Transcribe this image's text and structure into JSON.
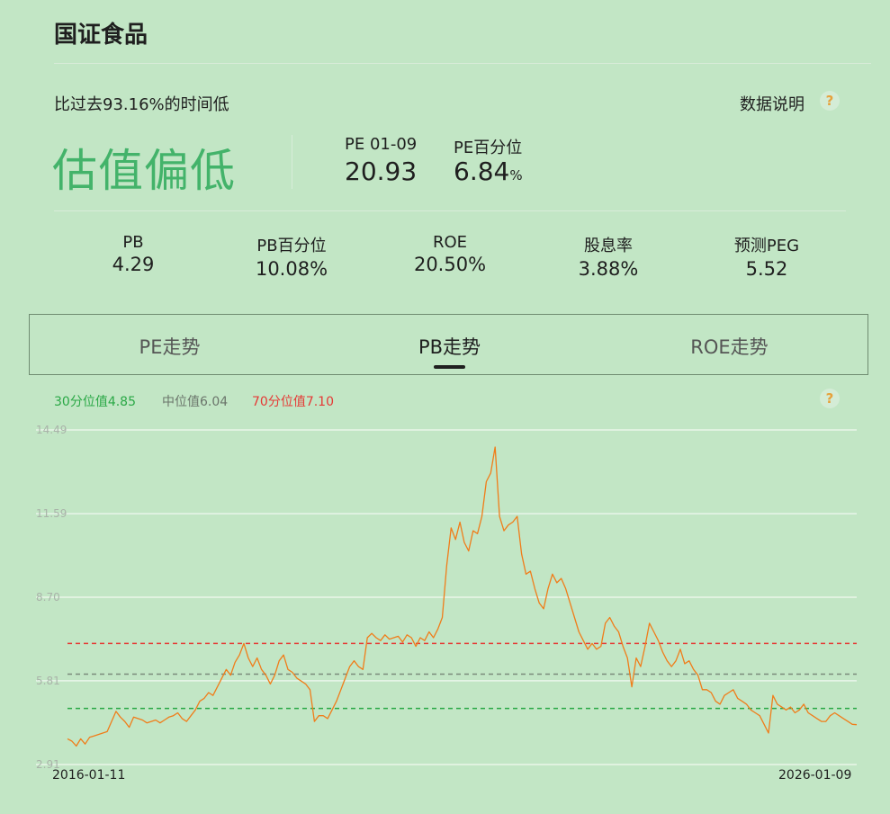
{
  "header": {
    "title": "国证食品"
  },
  "summary": {
    "subtitle": "比过去93.16%的时间低",
    "explain_label": "数据说明",
    "help_icon": "?",
    "status": "估值偏低",
    "pe_label": "PE 01-09",
    "pe_value": "20.93",
    "pe_pct_label": "PE百分位",
    "pe_pct_value": "6.84",
    "pe_pct_unit": "%"
  },
  "metrics": [
    {
      "label": "PB",
      "value": "4.29"
    },
    {
      "label": "PB百分位",
      "value": "10.08%"
    },
    {
      "label": "ROE",
      "value": "20.50%"
    },
    {
      "label": "股息率",
      "value": "3.88%"
    },
    {
      "label": "预测PEG",
      "value": "5.52"
    }
  ],
  "tabs": [
    {
      "label": "PE走势",
      "active": false
    },
    {
      "label": "PB走势",
      "active": true
    },
    {
      "label": "ROE走势",
      "active": false
    }
  ],
  "legend": {
    "p30": "30分位值4.85",
    "median": "中位值6.04",
    "p70": "70分位值7.10",
    "help_icon": "?"
  },
  "colors": {
    "line": "#f07d1a",
    "p30": "#2aa846",
    "median": "#7a8a7a",
    "p70": "#e53935",
    "status": "#43b36a"
  },
  "chart_data": {
    "type": "line",
    "title": "",
    "xlabel": "",
    "ylabel": "",
    "ylim": [
      2.91,
      14.49
    ],
    "y_ticks": [
      "14.49",
      "11.59",
      "8.70",
      "5.81",
      "2.91"
    ],
    "x_start_label": "2016-01-11",
    "x_end_label": "2026-01-09",
    "reference_lines": [
      {
        "name": "30分位值",
        "value": 4.85
      },
      {
        "name": "中位值",
        "value": 6.04
      },
      {
        "name": "70分位值",
        "value": 7.1
      }
    ],
    "series": [
      {
        "values": [
          3.8,
          3.72,
          3.55,
          3.8,
          3.62,
          3.85,
          3.9,
          3.95,
          4.0,
          4.05,
          4.4,
          4.75,
          4.55,
          4.4,
          4.2,
          4.55,
          4.5,
          4.45,
          4.35,
          4.4,
          4.45,
          4.35,
          4.45,
          4.55,
          4.6,
          4.7,
          4.5,
          4.4,
          4.6,
          4.8,
          5.1,
          5.2,
          5.4,
          5.3,
          5.6,
          5.9,
          6.2,
          6.0,
          6.45,
          6.7,
          7.1,
          6.6,
          6.3,
          6.6,
          6.2,
          6.0,
          5.7,
          6.0,
          6.5,
          6.7,
          6.2,
          6.1,
          5.9,
          5.8,
          5.7,
          5.5,
          4.4,
          4.6,
          4.6,
          4.5,
          4.8,
          5.1,
          5.5,
          5.9,
          6.3,
          6.5,
          6.3,
          6.2,
          7.3,
          7.45,
          7.3,
          7.2,
          7.4,
          7.25,
          7.3,
          7.35,
          7.15,
          7.4,
          7.3,
          7.0,
          7.3,
          7.2,
          7.5,
          7.3,
          7.6,
          8.0,
          9.8,
          11.1,
          10.7,
          11.3,
          10.6,
          10.3,
          11.0,
          10.9,
          11.5,
          12.7,
          13.0,
          13.9,
          11.5,
          11.0,
          11.2,
          11.3,
          11.5,
          10.2,
          9.5,
          9.6,
          9.0,
          8.5,
          8.3,
          9.0,
          9.5,
          9.2,
          9.35,
          9.0,
          8.5,
          8.0,
          7.5,
          7.2,
          6.9,
          7.1,
          6.9,
          7.0,
          7.8,
          8.0,
          7.7,
          7.5,
          7.0,
          6.6,
          5.6,
          6.6,
          6.3,
          7.0,
          7.8,
          7.5,
          7.2,
          6.8,
          6.5,
          6.3,
          6.5,
          6.9,
          6.4,
          6.5,
          6.2,
          6.0,
          5.5,
          5.5,
          5.4,
          5.1,
          5.0,
          5.3,
          5.4,
          5.5,
          5.2,
          5.1,
          5.0,
          4.8,
          4.7,
          4.6,
          4.3,
          4.0,
          5.3,
          5.0,
          4.9,
          4.8,
          4.9,
          4.7,
          4.8,
          5.0,
          4.7,
          4.6,
          4.5,
          4.4,
          4.4,
          4.6,
          4.7,
          4.6,
          4.5,
          4.4,
          4.3,
          4.29
        ]
      }
    ]
  }
}
